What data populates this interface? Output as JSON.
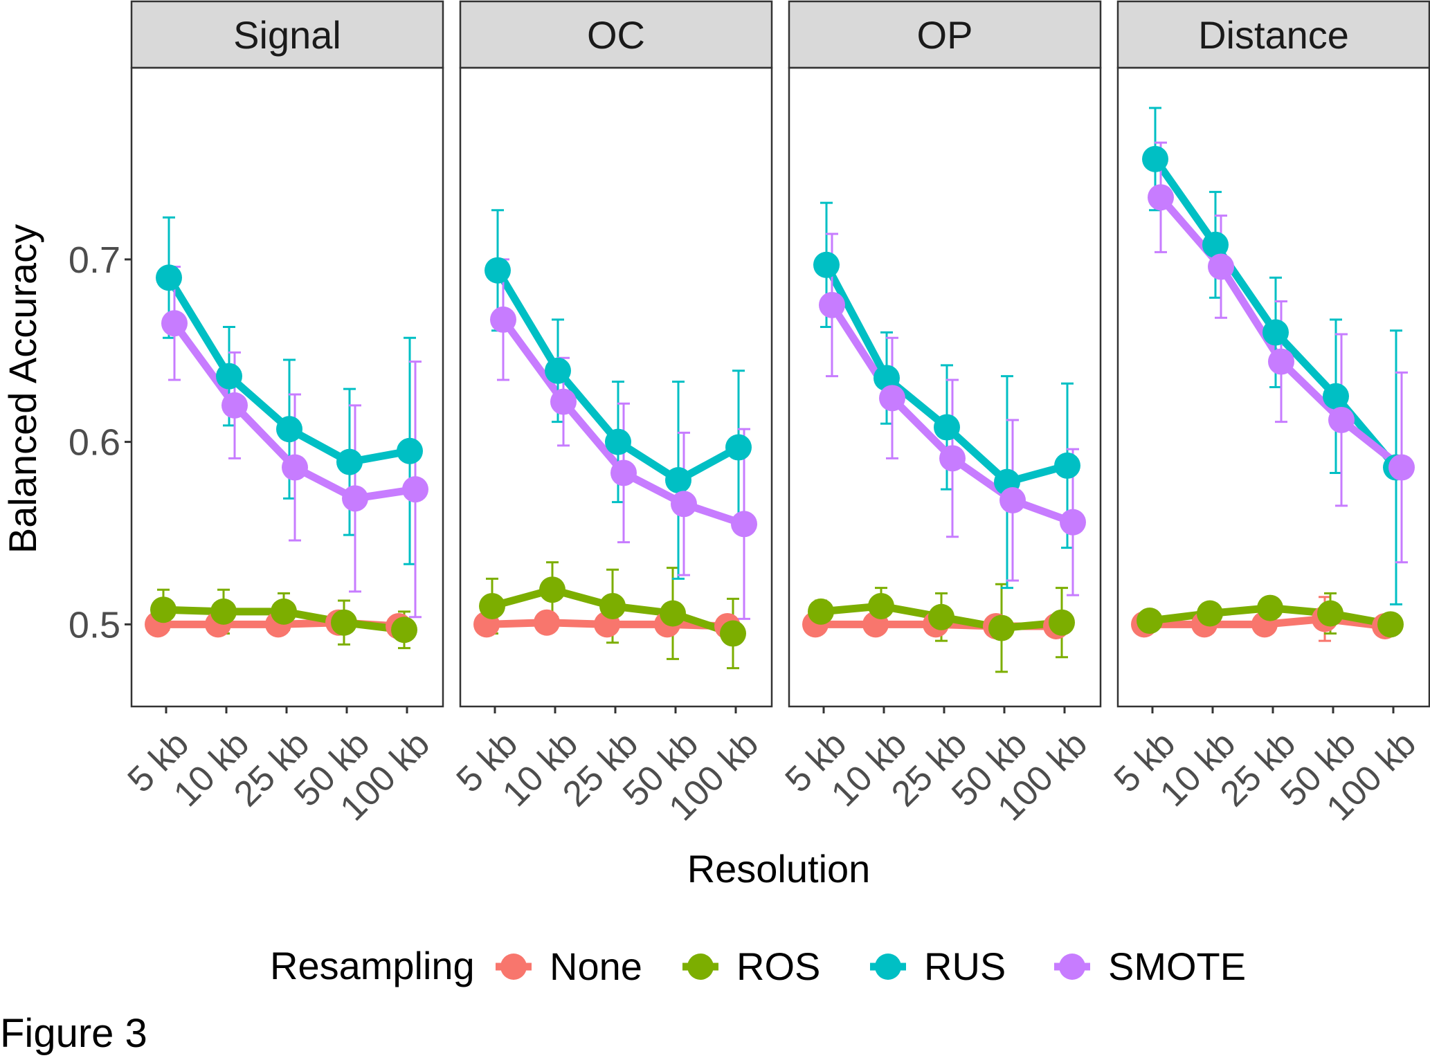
{
  "chart_data": {
    "type": "line",
    "facet_variable": "feature",
    "panels": [
      "Signal",
      "OC",
      "OP",
      "Distance"
    ],
    "categories": [
      "5 kb",
      "10 kb",
      "25 kb",
      "50 kb",
      "100 kb"
    ],
    "xlabel": "Resolution",
    "ylabel": "Balanced Accuracy",
    "yticks": [
      0.5,
      0.6,
      0.7
    ],
    "ytick_labels": [
      "0.5",
      "0.6",
      "0.7"
    ],
    "ylim": [
      0.455,
      0.805
    ],
    "grid": false,
    "error_bars": true,
    "legend": {
      "title": "Resampling",
      "position": "bottom",
      "entries": [
        "None",
        "ROS",
        "RUS",
        "SMOTE"
      ]
    },
    "colors": {
      "None": "#F8766D",
      "ROS": "#7CAE00",
      "RUS": "#00BFC4",
      "SMOTE": "#C77CFF"
    },
    "series": [
      {
        "panel": "Signal",
        "data": {
          "None": {
            "values": [
              0.5,
              0.5,
              0.5,
              0.501,
              0.499
            ],
            "err": [
              0.002,
              0.002,
              0.002,
              0.002,
              0.002
            ]
          },
          "ROS": {
            "values": [
              0.508,
              0.507,
              0.507,
              0.501,
              0.497
            ],
            "err": [
              0.011,
              0.012,
              0.01,
              0.012,
              0.01
            ]
          },
          "RUS": {
            "values": [
              0.69,
              0.636,
              0.607,
              0.589,
              0.595
            ],
            "err": [
              0.033,
              0.027,
              0.038,
              0.04,
              0.062
            ]
          },
          "SMOTE": {
            "values": [
              0.665,
              0.62,
              0.586,
              0.569,
              0.574
            ],
            "err": [
              0.031,
              0.029,
              0.04,
              0.051,
              0.07
            ]
          }
        }
      },
      {
        "panel": "OC",
        "data": {
          "None": {
            "values": [
              0.5,
              0.501,
              0.5,
              0.5,
              0.499
            ],
            "err": [
              0.002,
              0.002,
              0.002,
              0.002,
              0.002
            ]
          },
          "ROS": {
            "values": [
              0.51,
              0.519,
              0.51,
              0.506,
              0.495
            ],
            "err": [
              0.015,
              0.015,
              0.02,
              0.025,
              0.019
            ]
          },
          "RUS": {
            "values": [
              0.694,
              0.639,
              0.6,
              0.579,
              0.597
            ],
            "err": [
              0.033,
              0.028,
              0.033,
              0.054,
              0.042
            ]
          },
          "SMOTE": {
            "values": [
              0.667,
              0.622,
              0.583,
              0.566,
              0.555
            ],
            "err": [
              0.033,
              0.024,
              0.038,
              0.039,
              0.052
            ]
          }
        }
      },
      {
        "panel": "OP",
        "data": {
          "None": {
            "values": [
              0.5,
              0.5,
              0.5,
              0.499,
              0.499
            ],
            "err": [
              0.002,
              0.002,
              0.002,
              0.002,
              0.002
            ]
          },
          "ROS": {
            "values": [
              0.507,
              0.51,
              0.504,
              0.498,
              0.501
            ],
            "err": [
              0.006,
              0.01,
              0.013,
              0.024,
              0.019
            ]
          },
          "RUS": {
            "values": [
              0.697,
              0.635,
              0.608,
              0.578,
              0.587
            ],
            "err": [
              0.034,
              0.025,
              0.034,
              0.058,
              0.045
            ]
          },
          "SMOTE": {
            "values": [
              0.675,
              0.624,
              0.591,
              0.568,
              0.556
            ],
            "err": [
              0.039,
              0.033,
              0.043,
              0.044,
              0.04
            ]
          }
        }
      },
      {
        "panel": "Distance",
        "data": {
          "None": {
            "values": [
              0.5,
              0.5,
              0.5,
              0.503,
              0.499
            ],
            "err": [
              0.002,
              0.002,
              0.002,
              0.012,
              0.002
            ]
          },
          "ROS": {
            "values": [
              0.502,
              0.506,
              0.509,
              0.506,
              0.5
            ],
            "err": [
              0.003,
              0.005,
              0.005,
              0.011,
              0.002
            ]
          },
          "RUS": {
            "values": [
              0.755,
              0.708,
              0.66,
              0.625,
              0.586
            ],
            "err": [
              0.028,
              0.029,
              0.03,
              0.042,
              0.075
            ]
          },
          "SMOTE": {
            "values": [
              0.734,
              0.696,
              0.644,
              0.612,
              0.586
            ],
            "err": [
              0.03,
              0.028,
              0.033,
              0.047,
              0.052
            ]
          }
        }
      }
    ]
  },
  "caption": "Figure 3"
}
